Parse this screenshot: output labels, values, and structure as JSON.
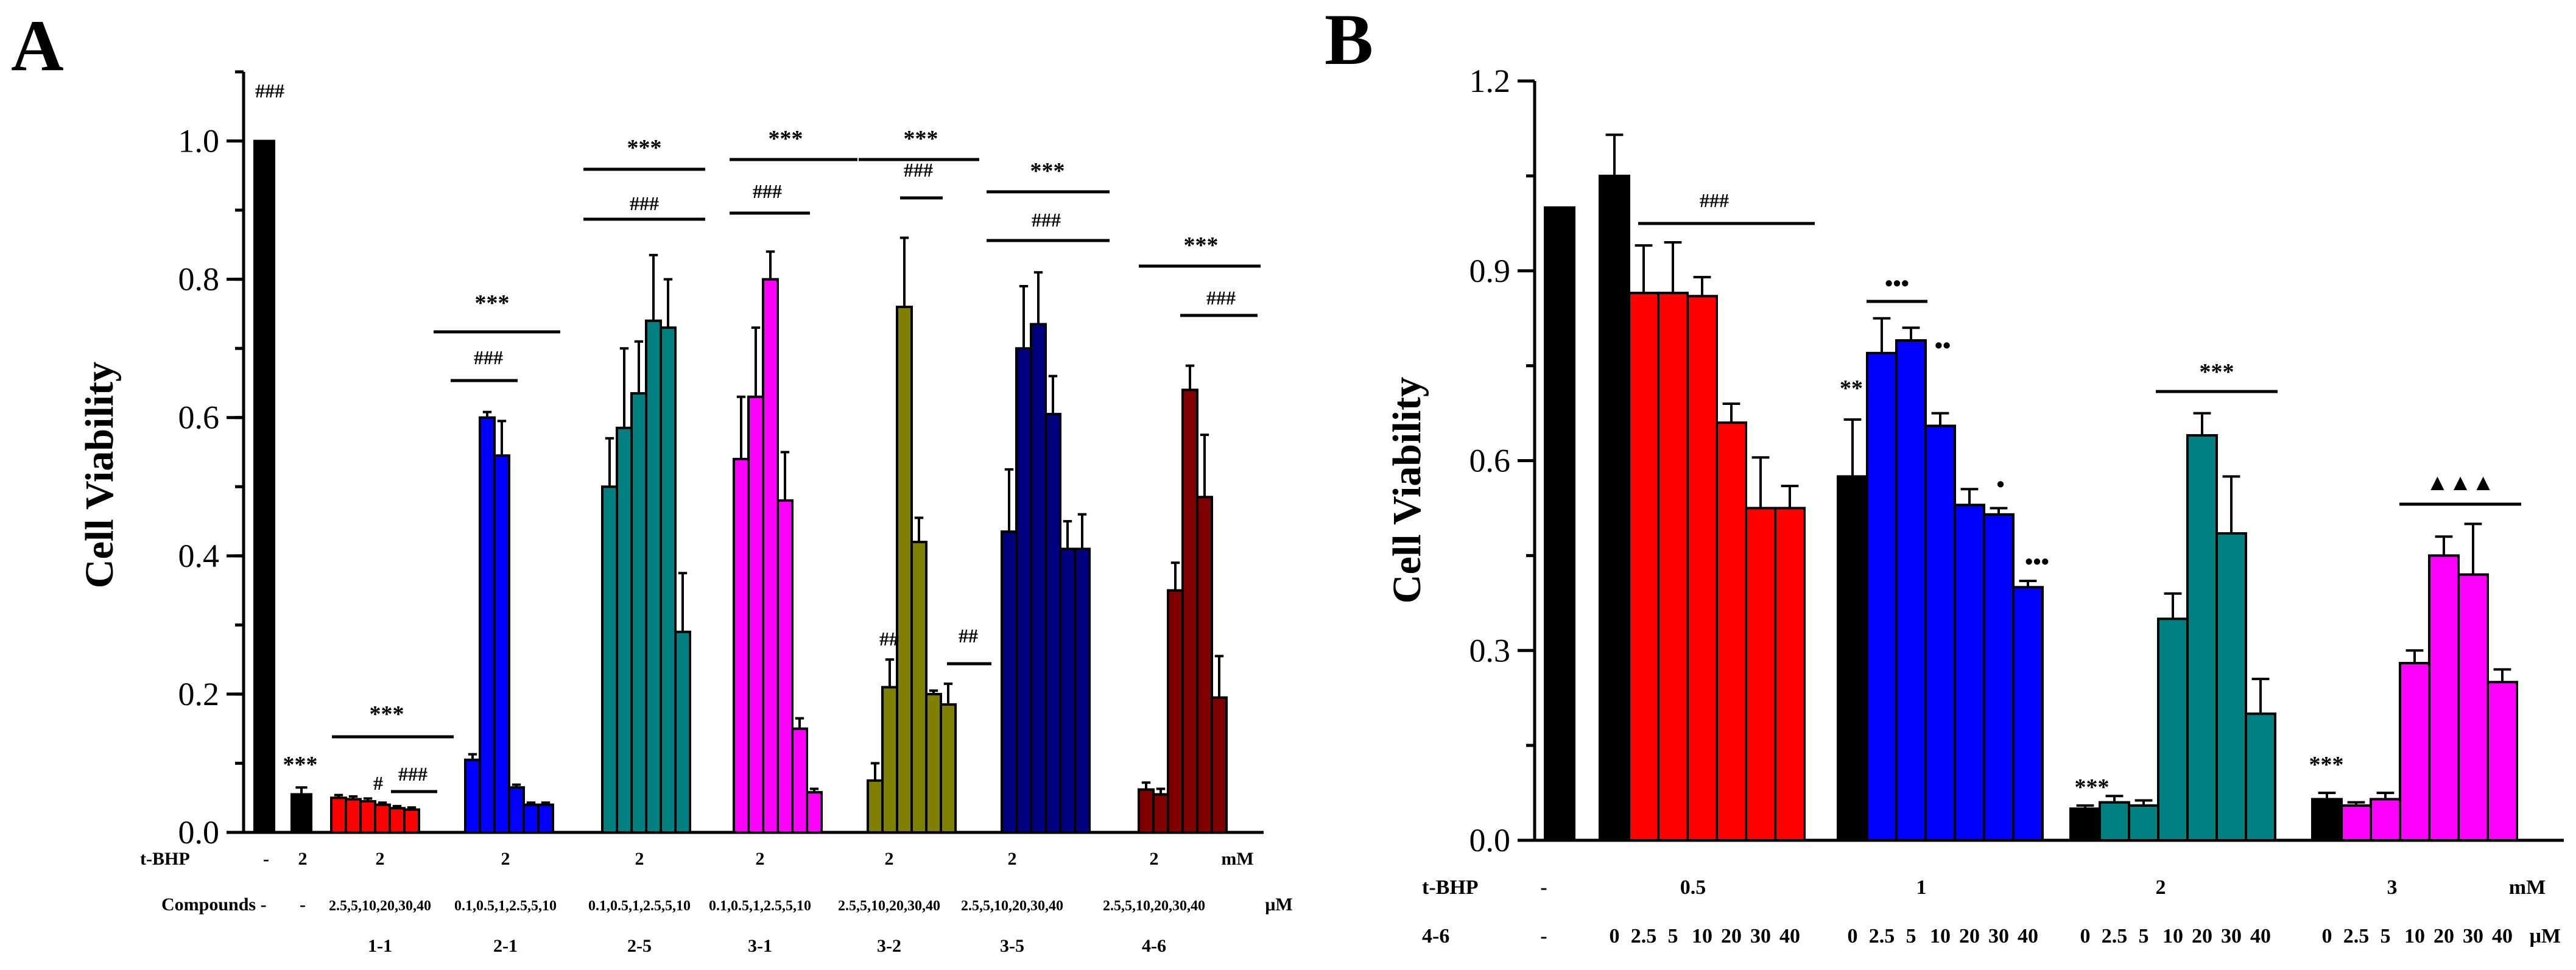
{
  "chart_data": [
    {
      "panel": "A",
      "type": "bar",
      "ylabel": "Cell Viability",
      "ylim": [
        0,
        1.1
      ],
      "yticks": [
        "0.0",
        "0.2",
        "0.4",
        "0.6",
        "0.8",
        "1.0"
      ],
      "grid": false,
      "row_labels": {
        "tbhp": "t-BHP",
        "compounds": "Compounds -",
        "tbhp_unit": "mM",
        "conc_unit": "μM"
      },
      "control": {
        "tbhp": "-",
        "compound": "-",
        "value": 1.0,
        "error": 0.0,
        "color": "#000000",
        "mark": "###"
      },
      "model": {
        "tbhp": "2",
        "compound": "-",
        "value": 0.055,
        "error": 0.01,
        "color": "#000000",
        "mark": "***"
      },
      "groups": [
        {
          "name": "1-1",
          "tbhp": "2",
          "concentrations": "2.5,5,10,20,30,40",
          "color": "#ff0000",
          "values": [
            0.05,
            0.048,
            0.045,
            0.04,
            0.035,
            0.033
          ],
          "errors": [
            0.004,
            0.004,
            0.004,
            0.003,
            0.003,
            0.003
          ],
          "sig": [
            "***",
            "#",
            "###"
          ]
        },
        {
          "name": "2-1",
          "tbhp": "2",
          "concentrations": "0.1,0.5,1,2.5,5,10",
          "color": "#0000ff",
          "values": [
            0.105,
            0.6,
            0.545,
            0.065,
            0.04,
            0.04
          ],
          "errors": [
            0.008,
            0.008,
            0.05,
            0.004,
            0.003,
            0.003
          ],
          "sig": [
            "***",
            "###"
          ]
        },
        {
          "name": "2-5",
          "tbhp": "2",
          "concentrations": "0.1,0.5,1,2.5,5,10",
          "color": "#008080",
          "values": [
            0.5,
            0.585,
            0.635,
            0.74,
            0.73,
            0.29
          ],
          "errors": [
            0.07,
            0.115,
            0.075,
            0.095,
            0.07,
            0.085
          ],
          "sig": [
            "***",
            "###"
          ]
        },
        {
          "name": "3-1",
          "tbhp": "2",
          "concentrations": "0.1,0.5,1,2.5,5,10",
          "color": "#ff00ff",
          "values": [
            0.54,
            0.63,
            0.8,
            0.48,
            0.15,
            0.058
          ],
          "errors": [
            0.09,
            0.1,
            0.04,
            0.07,
            0.015,
            0.005
          ],
          "sig": [
            "***",
            "###"
          ]
        },
        {
          "name": "3-2",
          "tbhp": "2",
          "concentrations": "2.5,5,10,20,30,40",
          "color": "#808000",
          "values": [
            0.075,
            0.21,
            0.76,
            0.42,
            0.2,
            0.185
          ],
          "errors": [
            0.025,
            0.04,
            0.1,
            0.035,
            0.005,
            0.03
          ],
          "sig": [
            "***",
            "###",
            "##",
            "##"
          ]
        },
        {
          "name": "3-5",
          "tbhp": "2",
          "concentrations": "2.5,5,10,20,30,40",
          "color": "#000080",
          "values": [
            0.435,
            0.7,
            0.735,
            0.605,
            0.41,
            0.41
          ],
          "errors": [
            0.09,
            0.09,
            0.075,
            0.055,
            0.04,
            0.05
          ],
          "sig": [
            "***",
            "###"
          ]
        },
        {
          "name": "4-6",
          "tbhp": "2",
          "concentrations": "2.5,5,10,20,30,40",
          "color": "#800000",
          "values": [
            0.062,
            0.055,
            0.35,
            0.64,
            0.485,
            0.195
          ],
          "errors": [
            0.01,
            0.008,
            0.04,
            0.035,
            0.09,
            0.06
          ],
          "sig": [
            "***",
            "###"
          ]
        }
      ]
    },
    {
      "panel": "B",
      "type": "bar",
      "ylabel": "Cell Viability",
      "ylim": [
        0,
        1.2
      ],
      "yticks": [
        "0.0",
        "0.3",
        "0.6",
        "0.9",
        "1.2"
      ],
      "grid": false,
      "row_labels": {
        "tbhp": "t-BHP",
        "compound": "4-6",
        "tbhp_unit": "mM",
        "conc_unit": "μM",
        "dash": "-"
      },
      "concentration_labels": [
        "0",
        "2.5",
        "5",
        "10",
        "20",
        "30",
        "40"
      ],
      "control": {
        "value": 1.0,
        "error": 0.0,
        "color": "#000000"
      },
      "groups": [
        {
          "tbhp": "0.5",
          "zero_color": "#000000",
          "color": "#ff0000",
          "values": [
            1.05,
            0.865,
            0.865,
            0.86,
            0.66,
            0.525,
            0.525
          ],
          "errors": [
            0.065,
            0.075,
            0.08,
            0.03,
            0.03,
            0.08,
            0.035
          ],
          "sig": [
            "###"
          ]
        },
        {
          "tbhp": "1",
          "zero_color": "#000000",
          "color": "#0000ff",
          "values": [
            0.575,
            0.77,
            0.79,
            0.655,
            0.53,
            0.515,
            0.4
          ],
          "errors": [
            0.09,
            0.055,
            0.02,
            0.02,
            0.025,
            0.01,
            0.01
          ],
          "sig": [
            "**",
            "•••",
            "••",
            "•",
            "•••"
          ]
        },
        {
          "tbhp": "2",
          "zero_color": "#000000",
          "color": "#008080",
          "values": [
            0.05,
            0.06,
            0.055,
            0.35,
            0.64,
            0.485,
            0.2
          ],
          "errors": [
            0.005,
            0.01,
            0.008,
            0.04,
            0.035,
            0.09,
            0.055
          ],
          "sig": [
            "***",
            "***"
          ]
        },
        {
          "tbhp": "3",
          "zero_color": "#000000",
          "color": "#ff00ff",
          "values": [
            0.065,
            0.055,
            0.065,
            0.28,
            0.45,
            0.42,
            0.25
          ],
          "errors": [
            0.01,
            0.005,
            0.01,
            0.02,
            0.03,
            0.08,
            0.02
          ],
          "sig": [
            "***",
            "▲▲▲"
          ]
        }
      ]
    }
  ]
}
